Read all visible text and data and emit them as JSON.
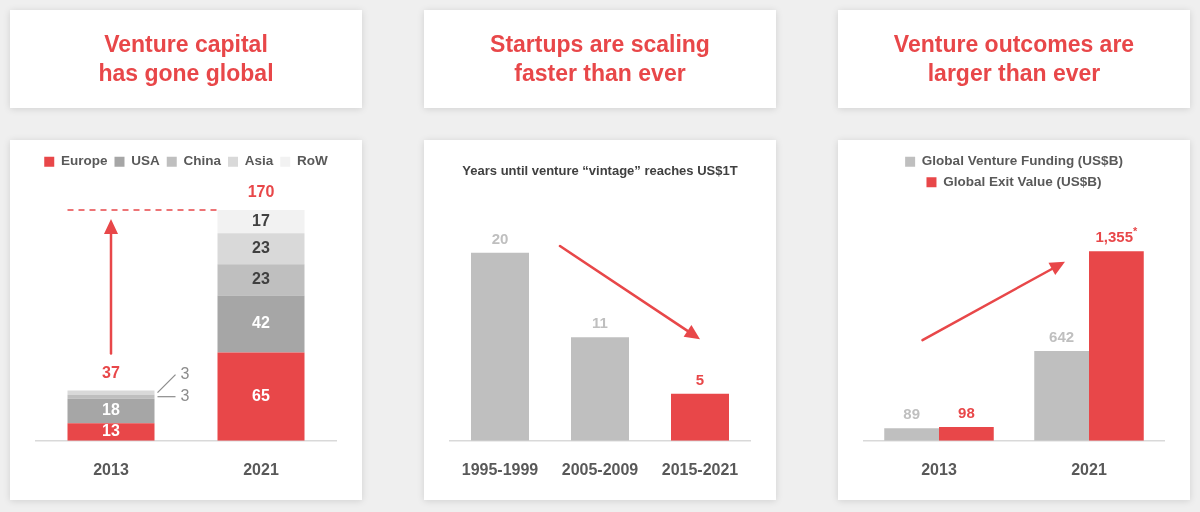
{
  "chart_data": [
    {
      "type": "bar",
      "title": "Venture capital\nhas gone global",
      "categories": [
        "2013",
        "2021"
      ],
      "stacked": true,
      "series": [
        {
          "name": "Europe",
          "color": "#e84749",
          "values": [
            13,
            65
          ]
        },
        {
          "name": "USA",
          "color": "#a6a6a6",
          "values": [
            18,
            42
          ]
        },
        {
          "name": "China",
          "color": "#bfbfbf",
          "values": [
            3,
            23
          ]
        },
        {
          "name": "Asia",
          "color": "#d9d9d9",
          "values": [
            3,
            23
          ]
        },
        {
          "name": "RoW",
          "color": "#f2f2f2",
          "values": [
            null,
            17
          ]
        }
      ],
      "totals": [
        "37",
        "170"
      ],
      "data_labels": true,
      "legend": "top",
      "tick_labels": "x",
      "ref_lines": [
        {
          "axis": "y",
          "value": 170,
          "color": "#e84749",
          "line_style": "dashed"
        }
      ]
    },
    {
      "type": "bar",
      "title": "Startups are scaling\nfaster than ever",
      "subtitle": "Years until venture “vintage” reaches US$1T",
      "categories": [
        "1995-1999",
        "2005-2009",
        "2015-2021"
      ],
      "values": [
        20,
        11,
        5
      ],
      "colors": [
        "#bfbfbf",
        "#bfbfbf",
        "#e84749"
      ],
      "data_labels": true,
      "tick_labels": "x"
    },
    {
      "type": "bar",
      "title": "Venture outcomes are\nlarger than ever",
      "categories": [
        "2013",
        "2021"
      ],
      "series": [
        {
          "name": "Global Venture Funding (US$B)",
          "color": "#bfbfbf",
          "values": [
            89,
            642
          ],
          "value_labels": [
            "89",
            "642"
          ]
        },
        {
          "name": "Global Exit Value (US$B)",
          "color": "#e84749",
          "values": [
            98,
            1355
          ],
          "value_labels": [
            "98",
            "1,355$^{*}$"
          ]
        }
      ],
      "legend": "top",
      "tick_labels": "x"
    }
  ]
}
